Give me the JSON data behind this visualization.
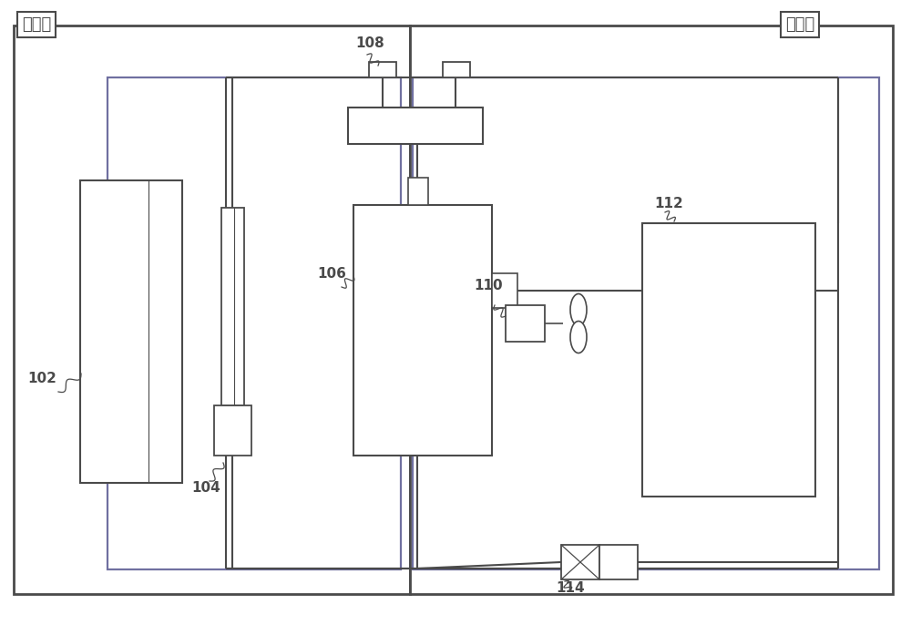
{
  "bg_color": "#ffffff",
  "label_indoor": "室内机",
  "label_outdoor": "室外机",
  "dark_line": "#4a4a4a",
  "purple_line": "#7070a0",
  "fig_width": 10.0,
  "fig_height": 6.86
}
